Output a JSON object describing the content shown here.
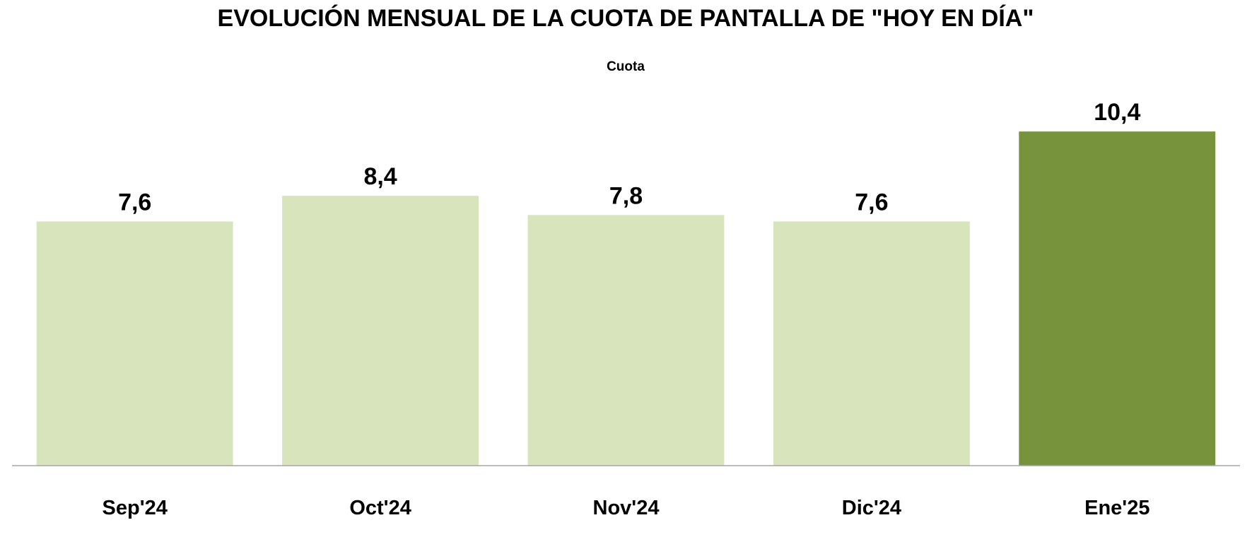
{
  "chart_data": {
    "type": "bar",
    "title": "EVOLUCIÓN MENSUAL DE LA CUOTA DE PANTALLA DE \"HOY EN DÍA\"",
    "subtitle": "Cuota",
    "xlabel": "",
    "ylabel": "",
    "categories": [
      "Sep'24",
      "Oct'24",
      "Nov'24",
      "Dic'24",
      "Ene'25"
    ],
    "values": [
      7.6,
      8.4,
      7.8,
      7.6,
      10.4
    ],
    "data_labels": [
      "7,6",
      "8,4",
      "7,8",
      "7,6",
      "10,4"
    ],
    "ylim": [
      0,
      11.7
    ],
    "grid": false,
    "legend": "none",
    "colors": {
      "bar": "#D8E4BC",
      "highlight_bar": "#77933C",
      "axis": "#A6A6A6"
    },
    "highlight_index": 4
  }
}
